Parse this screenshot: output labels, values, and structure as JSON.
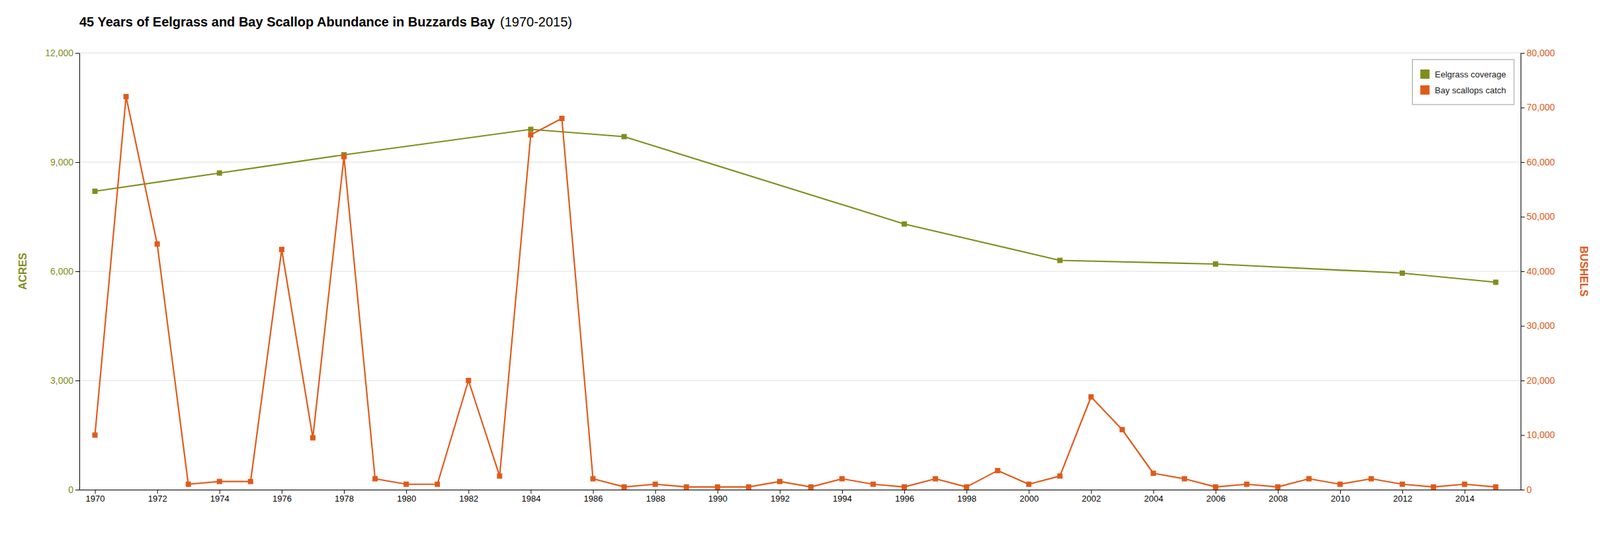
{
  "chart_data": {
    "type": "line",
    "title": "45 Years of Eelgrass and Bay Scallop Abundance in Buzzards Bay",
    "subtitle": "(1970-2015)",
    "ylabel": "ACRES",
    "y2label": "BUSHELS",
    "series": [
      {
        "name": "Eelgrass coverage",
        "color": "#808d1e",
        "marker": "square",
        "axis": "y",
        "x": [
          1970,
          1974,
          1978,
          1984,
          1987,
          1996,
          2001,
          2006,
          2012,
          2015
        ],
        "values": [
          8200,
          8700,
          9200,
          9900,
          9700,
          7300,
          6300,
          6200,
          5950,
          5700
        ]
      },
      {
        "name": "Bay scallops catch",
        "color": "#e05a1a",
        "marker": "square",
        "axis": "y2",
        "x": [
          1970,
          1971,
          1972,
          1973,
          1974,
          1975,
          1976,
          1977,
          1978,
          1979,
          1980,
          1981,
          1982,
          1983,
          1984,
          1985,
          1986,
          1987,
          1988,
          1989,
          1990,
          1991,
          1992,
          1993,
          1994,
          1995,
          1996,
          1997,
          1998,
          1999,
          2000,
          2001,
          2002,
          2003,
          2004,
          2005,
          2006,
          2007,
          2008,
          2009,
          2010,
          2011,
          2012,
          2013,
          2014,
          2015
        ],
        "values": [
          10000,
          72000,
          45000,
          1000,
          1500,
          1500,
          44000,
          9500,
          61000,
          2000,
          1000,
          1000,
          20000,
          2500,
          65000,
          68000,
          2000,
          500,
          1000,
          500,
          500,
          500,
          1500,
          500,
          2000,
          1000,
          500,
          2000,
          500,
          3500,
          1000,
          2500,
          17000,
          11000,
          3000,
          2000,
          500,
          1000,
          500,
          2000,
          1000,
          2000,
          1000,
          500,
          1000,
          500
        ]
      }
    ],
    "xlim": [
      1969.5,
      2015.8
    ],
    "xticks": [
      1970,
      1972,
      1974,
      1976,
      1978,
      1980,
      1982,
      1984,
      1986,
      1988,
      1990,
      1992,
      1994,
      1996,
      1998,
      2000,
      2002,
      2004,
      2006,
      2008,
      2010,
      2012,
      2014
    ],
    "ylim": [
      0,
      12000
    ],
    "yticks": [
      0,
      {
        "value": 3000,
        "label": "3,000"
      },
      {
        "value": 6000,
        "label": "6,000"
      },
      {
        "value": 9000,
        "label": "9,000"
      },
      {
        "value": 12000,
        "label": "12,000"
      }
    ],
    "y2lim": [
      0,
      80000
    ],
    "y2ticks": [
      0,
      {
        "value": 10000,
        "label": "10,000"
      },
      {
        "value": 20000,
        "label": "20,000"
      },
      {
        "value": 30000,
        "label": "30,000"
      },
      {
        "value": 40000,
        "label": "40,000"
      },
      {
        "value": 50000,
        "label": "50,000"
      },
      {
        "value": 60000,
        "label": "60,000"
      },
      {
        "value": 70000,
        "label": "70,000"
      },
      {
        "value": 80000,
        "label": "80,000"
      }
    ],
    "grid": true,
    "legend": "upper right"
  }
}
